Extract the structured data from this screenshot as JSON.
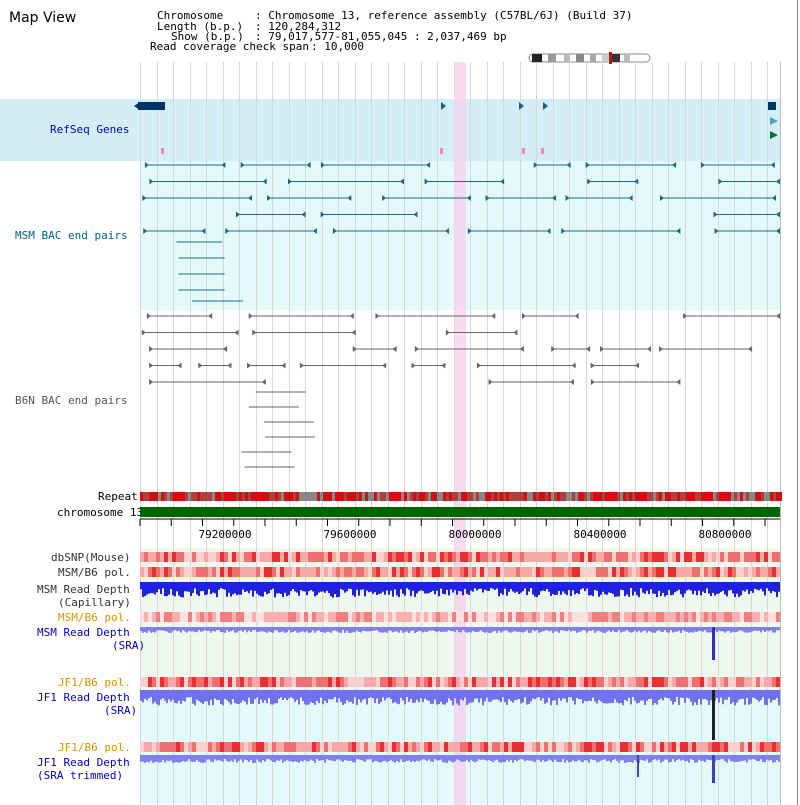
{
  "title": "Map View",
  "info": {
    "chromosome_label": "Chromosome",
    "chromosome_value": ": Chromosome 13, reference assembly (C57BL/6J) (Build 37)",
    "length_label": "Length (b.p.)",
    "length_value": ": 120,284,312",
    "show_label": "Show (b.p.)",
    "show_value": ": 79,017,577-81,055,045 : 2,037,469 bp",
    "coverage_label": "Read coverage check span",
    "coverage_value": ": 10,000"
  },
  "tracks": {
    "refseq": "RefSeq Genes",
    "msm_bac": "MSM BAC end pairs",
    "b6n_bac": "B6N BAC end pairs",
    "repeat": "Repeat",
    "chromosome": "chromosome 13",
    "dbsnp": "dbSNP(Mouse)",
    "msm_b6_pol_1": "MSM/B6 pol.",
    "msm_read_depth_cap_1": "MSM Read Depth",
    "msm_read_depth_cap_2": "(Capillary)",
    "msm_b6_pol_2": "MSM/B6 pol.",
    "msm_read_depth_sra_1": "MSM Read Depth",
    "msm_read_depth_sra_2": "(SRA)",
    "jf1_b6_pol_1": "JF1/B6 pol.",
    "jf1_read_depth_1": "JF1 Read Depth",
    "jf1_read_depth_2": "(SRA)",
    "jf1_b6_pol_2": "JF1/B6 pol.",
    "jf1_read_depth_trim_1": "JF1 Read Depth",
    "jf1_read_depth_trim_2": "(SRA trimmed)"
  },
  "axis_ticks": [
    "79200000",
    "79600000",
    "80000000",
    "80400000",
    "80800000"
  ],
  "colors": {
    "refseq_bg": "#d4eef8",
    "bac_bg": "#e4fafa",
    "msm_label": "#006080",
    "refseq_label": "#0000cc",
    "pol_label": "#e09000",
    "highlight": "#f7d0ee",
    "chromosome_bar": "#006600"
  }
}
